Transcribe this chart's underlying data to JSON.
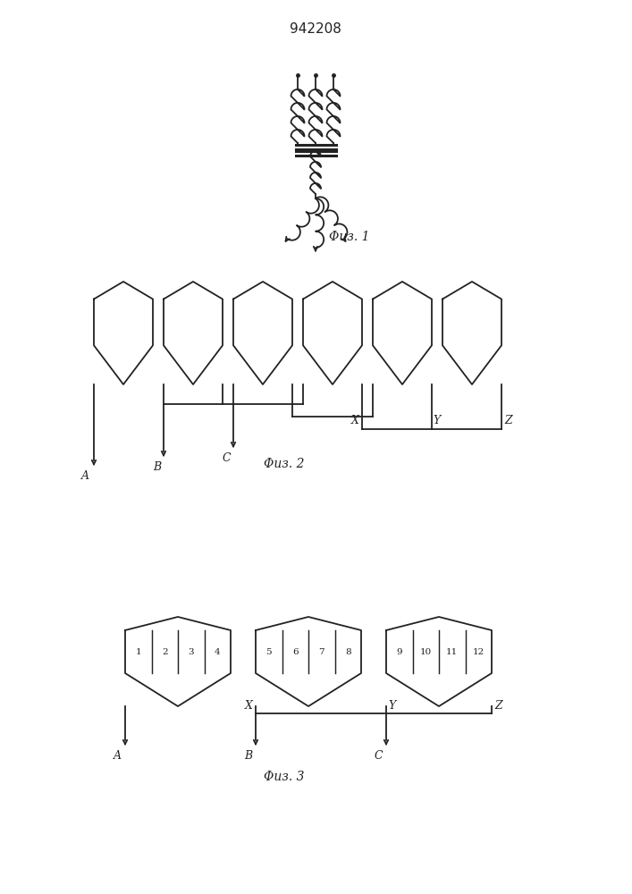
{
  "title": "942208",
  "fig1_label": "Φиз. 1",
  "fig2_label": "Φиз. 2",
  "fig3_label": "Φиз. 3",
  "bg_color": "#ffffff",
  "line_color": "#222222"
}
